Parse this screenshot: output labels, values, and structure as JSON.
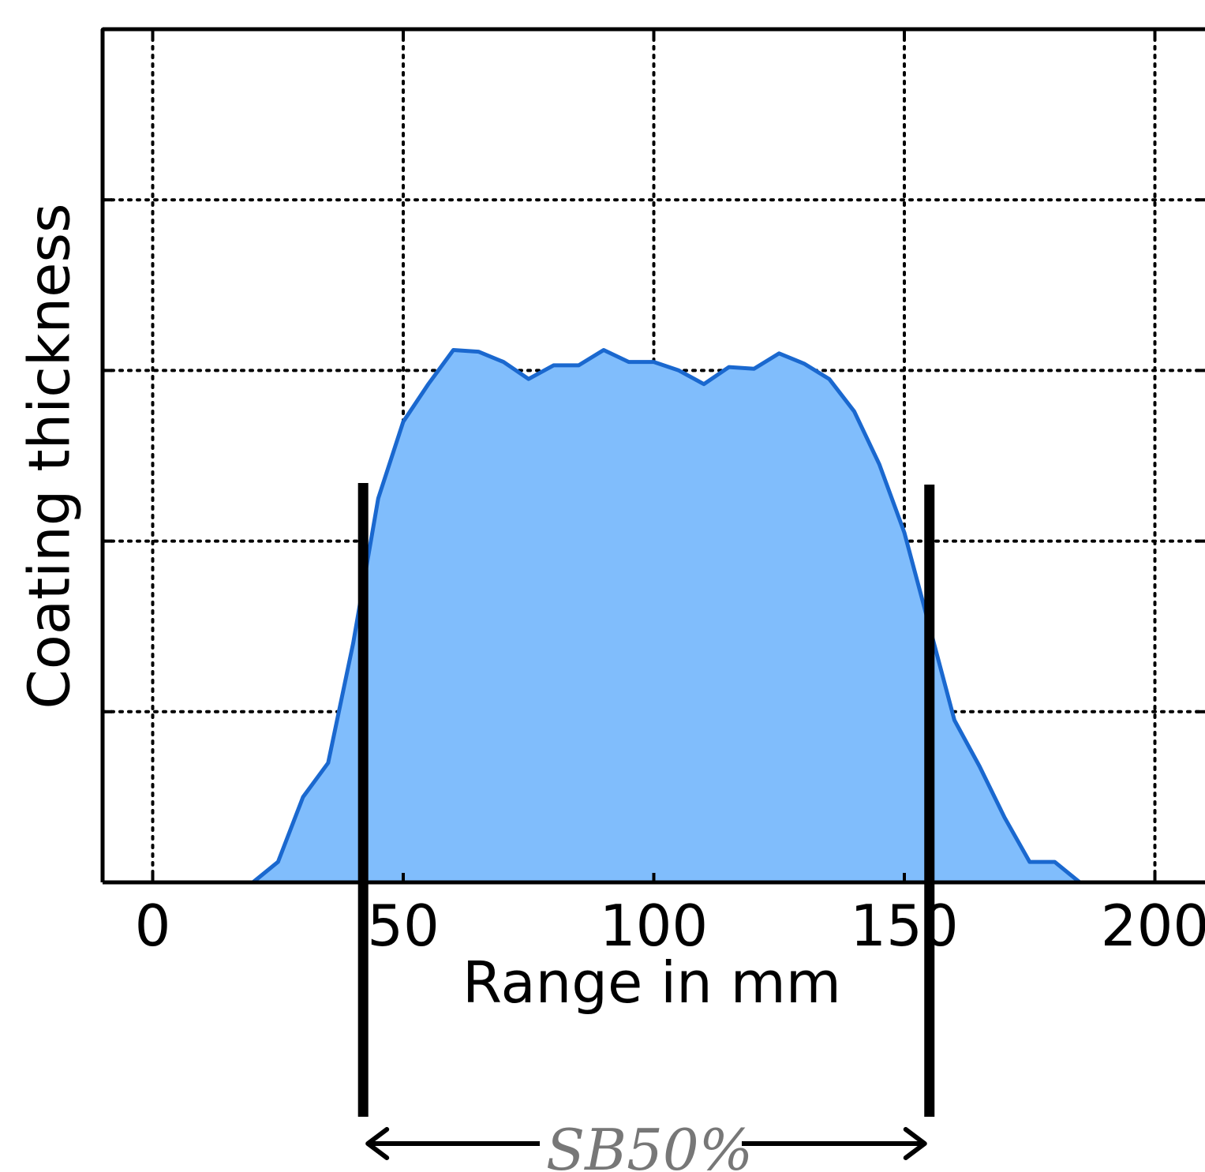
{
  "chart_data": {
    "type": "area",
    "title": "",
    "xlabel": "Range in mm",
    "ylabel": "Coating thickness",
    "xlim": [
      -10,
      210
    ],
    "ylim": [
      0,
      5
    ],
    "x_ticks": [
      0,
      50,
      100,
      150,
      200
    ],
    "x_tick_labels": [
      "0",
      "50",
      "100",
      "150",
      "200"
    ],
    "y_ticks": [
      0,
      1,
      2,
      3,
      4,
      5
    ],
    "y_tick_labels": [],
    "grid": true,
    "legend": "none",
    "series": [
      {
        "x": [
          10,
          20,
          25,
          30,
          35,
          40,
          45,
          50,
          55,
          60,
          65,
          70,
          75,
          80,
          85,
          90,
          95,
          100,
          105,
          110,
          115,
          120,
          125,
          130,
          135,
          140,
          145,
          150,
          155,
          160,
          165,
          170,
          175,
          180,
          185,
          190,
          195,
          200,
          205,
          210
        ],
        "y": [
          0.0,
          0.0,
          0.12,
          0.5,
          0.7,
          1.4,
          2.25,
          2.7,
          2.92,
          3.12,
          3.11,
          3.05,
          2.95,
          3.03,
          3.03,
          3.12,
          3.05,
          3.05,
          3.0,
          2.92,
          3.02,
          3.01,
          3.1,
          3.04,
          2.95,
          2.76,
          2.45,
          2.05,
          1.5,
          0.95,
          0.68,
          0.38,
          0.12,
          0.12,
          0.0,
          0.0,
          0.0,
          0.0,
          0.0,
          0.0
        ]
      }
    ],
    "colors": {
      "fill": "#80bdfc",
      "line": "#1a68cf",
      "grid": "#000000",
      "axis": "#000000",
      "annotation": "#777777"
    },
    "annotations": {
      "left_marker_x": 42,
      "right_marker_x": 155,
      "span_label": "SB50%"
    }
  }
}
